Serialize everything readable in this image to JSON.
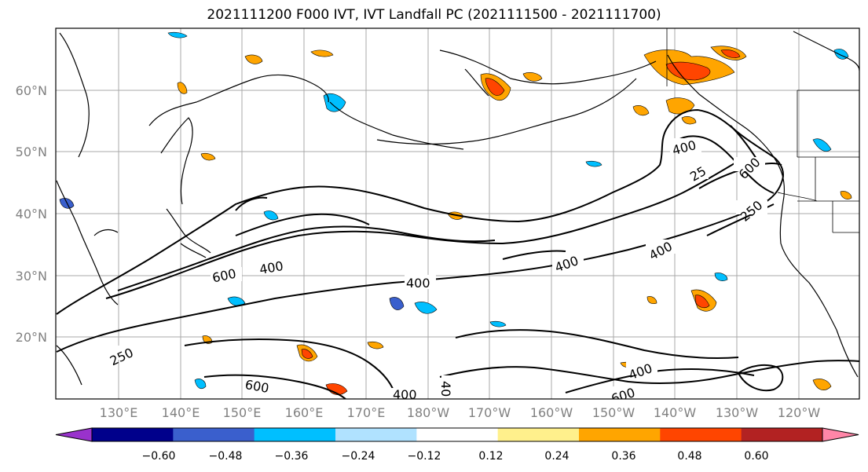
{
  "title": "2021111200 F000 IVT, IVT Landfall PC (2021111500 - 2021111700)",
  "lat_ticks": [
    "20°N",
    "30°N",
    "40°N",
    "50°N",
    "60°N"
  ],
  "lon_ticks": [
    "130°E",
    "140°E",
    "150°E",
    "160°E",
    "170°E",
    "180°W",
    "170°W",
    "160°W",
    "150°W",
    "140°W",
    "130°W",
    "120°W"
  ],
  "contour_labels": [
    "600",
    "400",
    "400",
    "400",
    "400",
    "400",
    "25",
    "600",
    "250",
    "250",
    "600",
    "400",
    "400",
    "40",
    "400",
    "600"
  ],
  "colorbar": {
    "colors": [
      "#9932cc",
      "#00008b",
      "#3a5fcd",
      "#00bfff",
      "#b0e2ff",
      "#ffffff",
      "#fff08c",
      "#ffa500",
      "#ff4500",
      "#b22222",
      "#ff86a8"
    ],
    "ticks": [
      "−0.60",
      "−0.48",
      "−0.36",
      "−0.24",
      "−0.12",
      "0.12",
      "0.24",
      "0.36",
      "0.48",
      "0.60"
    ]
  }
}
